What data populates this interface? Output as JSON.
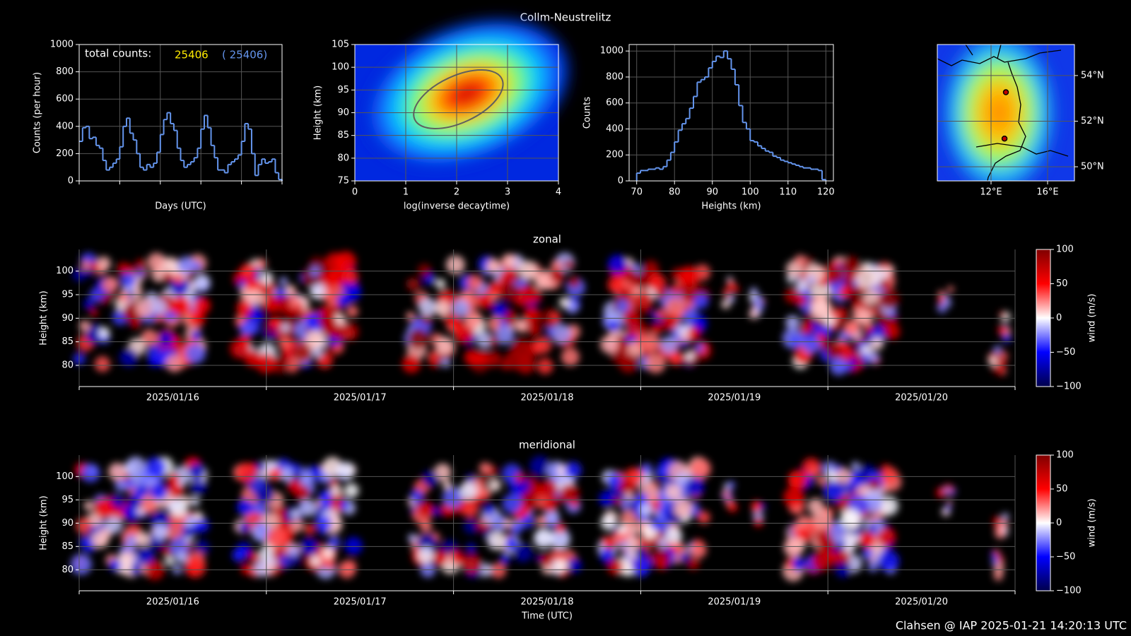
{
  "title": "Collm-Neustrelitz",
  "footer": "Clahsen @ IAP 2025-01-21 14:20:13 UTC",
  "chart_data": [
    {
      "type": "step",
      "xlabel": "Days (UTC)",
      "ylabel": "Counts (per hour)",
      "annotation": "total counts:",
      "total": "25406",
      "total_all": "( 25406)",
      "color": "#6495ed",
      "ylim": [
        0,
        1000
      ],
      "yticks": [
        0,
        200,
        400,
        600,
        800,
        1000
      ],
      "values": [
        290,
        390,
        400,
        310,
        320,
        260,
        240,
        150,
        80,
        100,
        130,
        160,
        250,
        400,
        460,
        350,
        300,
        200,
        100,
        80,
        120,
        100,
        130,
        210,
        340,
        450,
        500,
        420,
        370,
        240,
        150,
        100,
        120,
        140,
        170,
        240,
        380,
        480,
        390,
        260,
        170,
        80,
        80,
        60,
        120,
        140,
        160,
        190,
        290,
        420,
        380,
        200,
        40,
        120,
        160,
        130,
        140,
        160,
        60,
        10
      ]
    },
    {
      "type": "heatmap",
      "xlabel": "log(inverse decaytime)",
      "ylabel": "Height (km)",
      "xlim": [
        0,
        4
      ],
      "xticks": [
        0,
        1,
        2,
        3,
        4
      ],
      "ylim": [
        75,
        105
      ],
      "yticks": [
        75,
        80,
        85,
        90,
        95,
        100,
        105
      ]
    },
    {
      "type": "histogram",
      "xlabel": "Heights (km)",
      "ylabel": "Counts",
      "color": "#6495ed",
      "xlim": [
        68,
        122
      ],
      "xticks": [
        70,
        80,
        90,
        100,
        110,
        120
      ],
      "ylim": [
        0,
        1050
      ],
      "yticks": [
        0,
        200,
        400,
        600,
        800,
        1000
      ],
      "bins": [
        70,
        71,
        72,
        73,
        74,
        75,
        76,
        77,
        78,
        79,
        80,
        81,
        82,
        83,
        84,
        85,
        86,
        87,
        88,
        89,
        90,
        91,
        92,
        93,
        94,
        95,
        96,
        97,
        98,
        99,
        100,
        101,
        102,
        103,
        104,
        105,
        106,
        107,
        108,
        109,
        110,
        111,
        112,
        113,
        114,
        115,
        116,
        117,
        118,
        119,
        120
      ],
      "values": [
        60,
        80,
        80,
        90,
        90,
        100,
        90,
        110,
        160,
        220,
        300,
        390,
        440,
        480,
        560,
        650,
        760,
        780,
        800,
        870,
        920,
        960,
        950,
        1000,
        940,
        860,
        740,
        580,
        450,
        400,
        310,
        300,
        270,
        250,
        230,
        220,
        190,
        180,
        160,
        150,
        140,
        130,
        120,
        110,
        100,
        100,
        90,
        90,
        80,
        10
      ]
    },
    {
      "type": "map",
      "xlim": [
        8.2,
        17.9
      ],
      "ylim": [
        49.38,
        55.36
      ],
      "xticks": [
        {
          "value": 12,
          "label": "12°E"
        },
        {
          "value": 16,
          "label": "16°E"
        }
      ],
      "yticks": [
        {
          "value": 50,
          "label": "50°N"
        },
        {
          "value": 52,
          "label": "52°N"
        },
        {
          "value": 54,
          "label": "54°N"
        }
      ]
    },
    {
      "type": "wind",
      "title": "zonal",
      "ylabel": "Height (km)",
      "clabel": "wind (m/s)",
      "categories": [
        "2025/01/16",
        "2025/01/17",
        "2025/01/18",
        "2025/01/19",
        "2025/01/20"
      ],
      "ylim": [
        75.5,
        104.6
      ],
      "yticks": [
        80,
        85,
        90,
        95,
        100
      ],
      "clim": [
        -100,
        100
      ],
      "cticks": [
        {
          "value": -100,
          "label": "−100"
        },
        {
          "value": -50,
          "label": "−50"
        },
        0,
        50,
        100
      ]
    },
    {
      "type": "wind",
      "title": "meridional",
      "ylabel": "Height (km)",
      "clabel": "wind (m/s)",
      "xlabel": "Time (UTC)",
      "categories": [
        "2025/01/16",
        "2025/01/17",
        "2025/01/18",
        "2025/01/19",
        "2025/01/20"
      ],
      "ylim": [
        75.5,
        104.6
      ],
      "yticks": [
        80,
        85,
        90,
        95,
        100
      ],
      "clim": [
        -100,
        100
      ],
      "cticks": [
        {
          "value": -100,
          "label": "−100"
        },
        {
          "value": -50,
          "label": "−50"
        },
        0,
        50,
        100
      ]
    }
  ]
}
